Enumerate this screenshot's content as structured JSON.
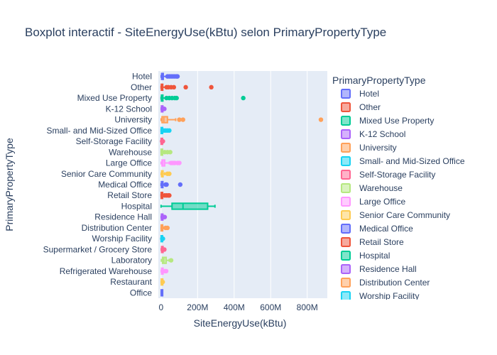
{
  "chart_data": {
    "type": "box",
    "title": "Boxplot interactif - SiteEnergyUse(kBtu) selon PrimaryPropertyType",
    "xlabel": "SiteEnergyUse(kBtu)",
    "ylabel": "PrimaryPropertyType",
    "orientation": "horizontal",
    "xlim": [
      -15000000,
      910000000
    ],
    "x_ticks": [
      0,
      200000000,
      400000000,
      600000000,
      800000000
    ],
    "x_tick_labels": [
      "0",
      "200M",
      "400M",
      "600M",
      "800M"
    ],
    "grid": true,
    "legend_title": "PrimaryPropertyType",
    "legend_placement": "right",
    "plot_background": "#e5ecf6",
    "series": [
      {
        "name": "Hotel",
        "color": "#636efa",
        "min": 500000,
        "q1": 3000000,
        "median": 6000000,
        "q3": 12000000,
        "whisker_high": 30000000,
        "outliers": [
          35000000,
          45000000,
          55000000,
          65000000,
          75000000,
          85000000,
          90000000
        ]
      },
      {
        "name": "Other",
        "color": "#EF553B",
        "min": 0,
        "q1": 1500000,
        "median": 3500000,
        "q3": 9000000,
        "whisker_high": 25000000,
        "outliers": [
          30000000,
          40000000,
          55000000,
          70000000,
          135000000,
          275000000
        ]
      },
      {
        "name": "Mixed Use Property",
        "color": "#00cc96",
        "min": 0,
        "q1": 2000000,
        "median": 4500000,
        "q3": 10000000,
        "whisker_high": 25000000,
        "outliers": [
          30000000,
          45000000,
          60000000,
          75000000,
          85000000,
          450000000
        ]
      },
      {
        "name": "K-12 School",
        "color": "#ab63fa",
        "min": 500000,
        "q1": 2000000,
        "median": 3500000,
        "q3": 5000000,
        "whisker_high": 10000000,
        "outliers": [
          12000000,
          15000000,
          18000000
        ]
      },
      {
        "name": "University",
        "color": "#FFA15A",
        "min": 500000,
        "q1": 5000000,
        "median": 15000000,
        "q3": 35000000,
        "whisker_high": 80000000,
        "outliers": [
          100000000,
          120000000,
          875000000
        ]
      },
      {
        "name": "Small- and Mid-Sized Office",
        "color": "#19d3f3",
        "min": 0,
        "q1": 700000,
        "median": 1500000,
        "q3": 3000000,
        "whisker_high": 8000000,
        "outliers": [
          15000000,
          25000000,
          35000000,
          45000000
        ]
      },
      {
        "name": "Self-Storage Facility",
        "color": "#FF6692",
        "min": 0,
        "q1": 400000,
        "median": 800000,
        "q3": 1500000,
        "whisker_high": 3000000,
        "outliers": [
          6000000,
          10000000
        ]
      },
      {
        "name": "Warehouse",
        "color": "#B6E880",
        "min": 0,
        "q1": 500000,
        "median": 1200000,
        "q3": 3000000,
        "whisker_high": 10000000,
        "outliers": [
          20000000,
          35000000,
          50000000
        ]
      },
      {
        "name": "Large Office",
        "color": "#FF97FF",
        "min": 500000,
        "q1": 5000000,
        "median": 10000000,
        "q3": 20000000,
        "whisker_high": 45000000,
        "outliers": [
          55000000,
          65000000,
          75000000,
          90000000,
          100000000
        ]
      },
      {
        "name": "Senior Care Community",
        "color": "#FECB52",
        "min": 500000,
        "q1": 3000000,
        "median": 6000000,
        "q3": 10000000,
        "whisker_high": 20000000,
        "outliers": [
          35000000,
          45000000
        ]
      },
      {
        "name": "Medical Office",
        "color": "#636efa",
        "min": 0,
        "q1": 2000000,
        "median": 4000000,
        "q3": 10000000,
        "whisker_high": 20000000,
        "outliers": [
          25000000,
          30000000,
          105000000
        ]
      },
      {
        "name": "Retail Store",
        "color": "#EF553B",
        "min": 0,
        "q1": 800000,
        "median": 2000000,
        "q3": 5000000,
        "whisker_high": 12000000,
        "outliers": [
          20000000,
          30000000,
          40000000,
          45000000
        ]
      },
      {
        "name": "Hospital",
        "color": "#00cc96",
        "min": 0,
        "q1": 60000000,
        "median": 120000000,
        "q3": 255000000,
        "whisker_high": 295000000,
        "outliers": []
      },
      {
        "name": "Residence Hall",
        "color": "#ab63fa",
        "min": 500000,
        "q1": 2000000,
        "median": 4000000,
        "q3": 7000000,
        "whisker_high": 12000000,
        "outliers": [
          15000000,
          20000000
        ]
      },
      {
        "name": "Distribution Center",
        "color": "#FFA15A",
        "min": 200000,
        "q1": 1000000,
        "median": 2000000,
        "q3": 5000000,
        "whisker_high": 12000000,
        "outliers": [
          25000000,
          35000000
        ]
      },
      {
        "name": "Worship Facility",
        "color": "#19d3f3",
        "min": 0,
        "q1": 400000,
        "median": 900000,
        "q3": 1800000,
        "whisker_high": 4000000,
        "outliers": [
          7000000,
          10000000
        ]
      },
      {
        "name": "Supermarket / Grocery Store",
        "color": "#FF6692",
        "min": 1000000,
        "q1": 3000000,
        "median": 6000000,
        "q3": 9000000,
        "whisker_high": 14000000,
        "outliers": [
          18000000
        ]
      },
      {
        "name": "Laboratory",
        "color": "#B6E880",
        "min": 2000000,
        "q1": 8000000,
        "median": 15000000,
        "q3": 28000000,
        "whisker_high": 45000000,
        "outliers": [
          55000000
        ]
      },
      {
        "name": "Large Office",
        "legend": false,
        "color": "#FF97FF",
        "min": 0,
        "q1": 0,
        "median": 0,
        "q3": 0,
        "whisker_high": 0,
        "outliers": []
      },
      {
        "name": "Refrigerated Warehouse",
        "color": "#FF97FF",
        "min": 1000000,
        "q1": 3000000,
        "median": 6000000,
        "q3": 10000000,
        "whisker_high": 16000000,
        "outliers": [
          22000000,
          28000000
        ]
      },
      {
        "name": "Restaurant",
        "color": "#FECB52",
        "min": 500000,
        "q1": 1500000,
        "median": 3000000,
        "q3": 4500000,
        "whisker_high": 7000000,
        "outliers": [
          9000000
        ]
      },
      {
        "name": "Office",
        "color": "#636efa",
        "min": 500000,
        "q1": 1000000,
        "median": 1500000,
        "q3": 2000000,
        "whisker_high": 3000000,
        "outliers": []
      }
    ],
    "categories": [
      "Hotel",
      "Other",
      "Mixed Use Property",
      "K-12 School",
      "University",
      "Small- and Mid-Sized Office",
      "Self-Storage Facility",
      "Warehouse",
      "Large Office",
      "Senior Care Community",
      "Medical Office",
      "Retail Store",
      "Hospital",
      "Residence Hall",
      "Distribution Center",
      "Worship Facility",
      "Supermarket / Grocery Store",
      "Laboratory",
      "Refrigerated Warehouse",
      "Restaurant",
      "Office"
    ],
    "legend_items": [
      "Hotel",
      "Other",
      "Mixed Use Property",
      "K-12 School",
      "University",
      "Small- and Mid-Sized Office",
      "Self-Storage Facility",
      "Warehouse",
      "Large Office",
      "Senior Care Community",
      "Medical Office",
      "Retail Store",
      "Hospital",
      "Residence Hall",
      "Distribution Center",
      "Worship Facility"
    ]
  }
}
